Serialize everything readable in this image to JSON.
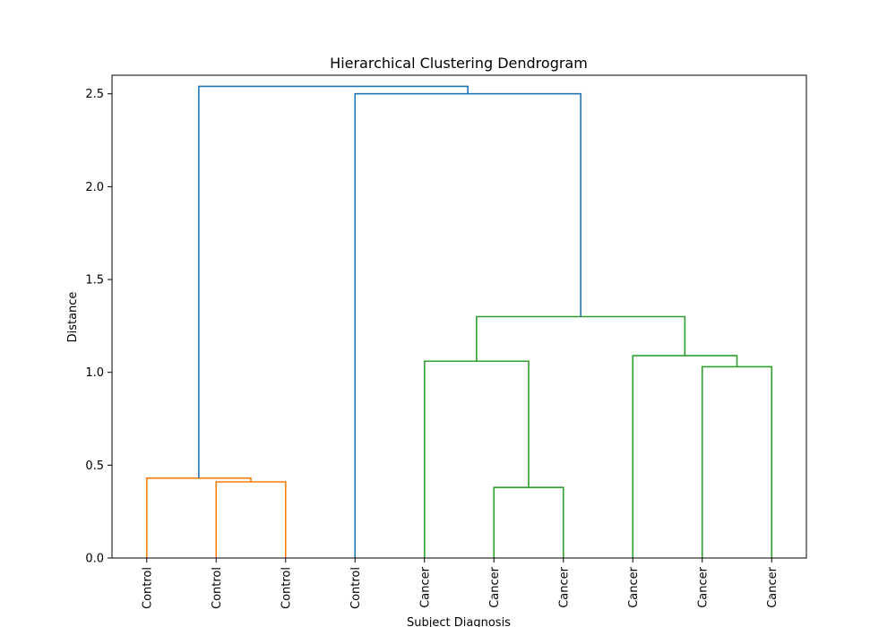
{
  "chart_data": {
    "type": "dendrogram",
    "title": "Hierarchical Clustering Dendrogram",
    "xlabel": "Subject Diagnosis",
    "ylabel": "Distance",
    "ylim": [
      0,
      2.6
    ],
    "yticks": [
      "0.0",
      "0.5",
      "1.0",
      "1.5",
      "2.0",
      "2.5"
    ],
    "leaves": [
      "Control",
      "Control",
      "Control",
      "Control",
      "Cancer",
      "Cancer",
      "Cancer",
      "Cancer",
      "Cancer",
      "Cancer"
    ],
    "colors": {
      "cluster_1": "#ff7f0e",
      "cluster_2": "#2ca02c",
      "above_threshold": "#1f77b4"
    },
    "links": [
      {
        "left": 1,
        "right": 2,
        "height": 0.41,
        "color": "cluster_1"
      },
      {
        "left": 0,
        "right": [
          1,
          2
        ],
        "height": 0.43,
        "color": "cluster_1"
      },
      {
        "left": 5,
        "right": 6,
        "height": 0.38,
        "color": "cluster_2"
      },
      {
        "left": 4,
        "right": [
          5,
          6
        ],
        "height": 1.06,
        "color": "cluster_2"
      },
      {
        "left": 8,
        "right": 9,
        "height": 1.03,
        "color": "cluster_2"
      },
      {
        "left": 7,
        "right": [
          8,
          9
        ],
        "height": 1.09,
        "color": "cluster_2"
      },
      {
        "left": [
          4,
          6
        ],
        "right": [
          7,
          9
        ],
        "height": 1.3,
        "color": "cluster_2"
      },
      {
        "left": 3,
        "right": [
          4,
          9
        ],
        "height": 2.5,
        "color": "above_threshold"
      },
      {
        "left": [
          0,
          2
        ],
        "right": [
          3,
          9
        ],
        "height": 2.54,
        "color": "above_threshold"
      }
    ]
  }
}
